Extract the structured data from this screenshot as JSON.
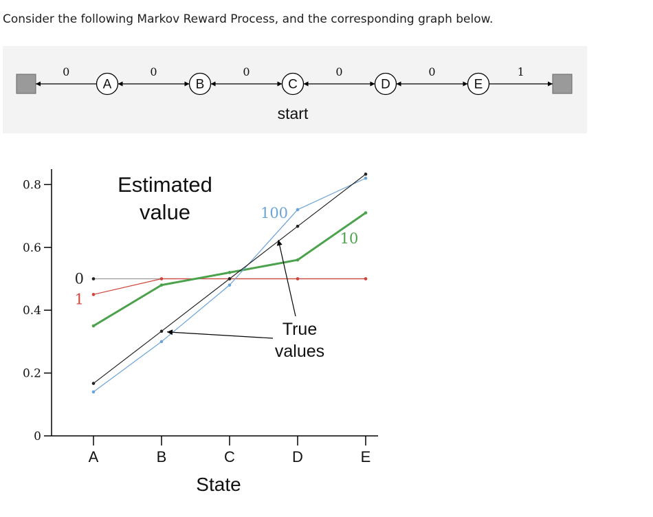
{
  "intro_text": "Consider the following Markov Reward Process, and the corresponding graph below.",
  "mrp": {
    "states": [
      "A",
      "B",
      "C",
      "D",
      "E"
    ],
    "rewards": [
      "0",
      "0",
      "0",
      "0",
      "0",
      "1"
    ],
    "start_label": "start",
    "terminal_color": "#9a9a9a"
  },
  "chart_data": {
    "type": "line",
    "xlabel": "State",
    "ylabel": "Estimated value",
    "categories": [
      "A",
      "B",
      "C",
      "D",
      "E"
    ],
    "ylim": [
      0,
      0.85
    ],
    "yticks": [
      {
        "v": 0,
        "label": "0"
      },
      {
        "v": 0.2,
        "label": "0.2"
      },
      {
        "v": 0.4,
        "label": "0.4"
      },
      {
        "v": 0.6,
        "label": "0.6"
      },
      {
        "v": 0.8,
        "label": "0.8"
      }
    ],
    "grid": false,
    "series": [
      {
        "label": "0",
        "values": [
          0.5,
          0.5,
          0.5,
          0.5,
          0.5
        ],
        "color": "#9a9a9a",
        "width": 1.2
      },
      {
        "label": "1",
        "values": [
          0.45,
          0.5,
          0.5,
          0.5,
          0.5
        ],
        "color": "#d0443a",
        "width": 1.2
      },
      {
        "label": "10",
        "values": [
          0.35,
          0.48,
          0.52,
          0.56,
          0.71
        ],
        "color": "#4ca24c",
        "width": 3
      },
      {
        "label": "100",
        "values": [
          0.14,
          0.3,
          0.48,
          0.72,
          0.82
        ],
        "color": "#6aa3d8",
        "width": 1.2
      },
      {
        "label": "True values",
        "values": [
          0.167,
          0.333,
          0.5,
          0.667,
          0.833
        ],
        "color": "#222222",
        "width": 1.2
      }
    ],
    "true_values_label_line1": "True",
    "true_values_label_line2": "values",
    "ylabel_line1": "Estimated",
    "ylabel_line2": "value"
  }
}
